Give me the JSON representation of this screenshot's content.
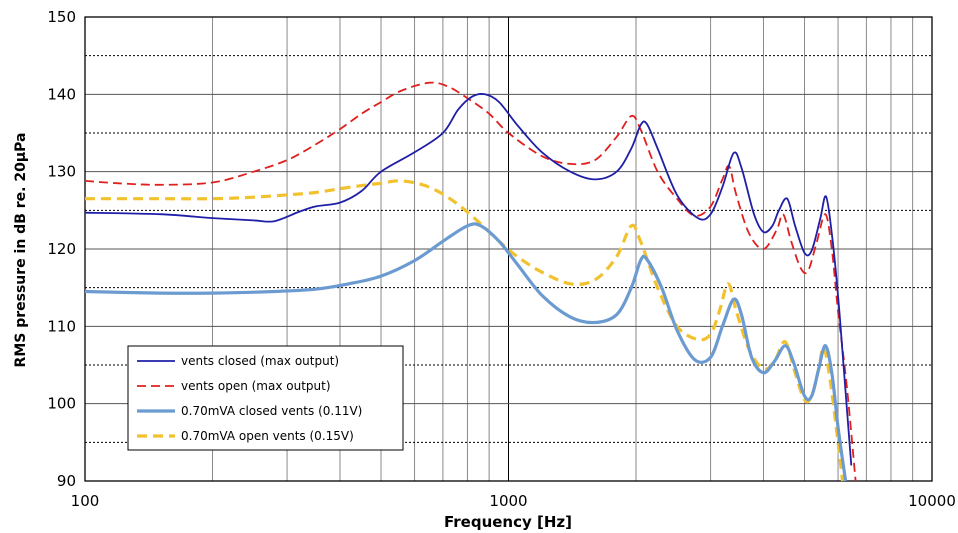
{
  "chart_data": {
    "type": "line",
    "xlabel": "Frequency [Hz]",
    "ylabel": "RMS pressure in dB re. 20µPa",
    "x_scale": "log",
    "xlim": [
      100,
      10000
    ],
    "ylim": [
      90,
      150
    ],
    "x_ticks": [
      100,
      1000,
      10000
    ],
    "x_tick_labels": [
      "100",
      "1000",
      "10000"
    ],
    "y_ticks": [
      90,
      100,
      110,
      120,
      130,
      140,
      150
    ],
    "y_tick_labels": [
      "90",
      "100",
      "110",
      "120",
      "130",
      "140",
      "150"
    ],
    "grid": true,
    "legend_position": "bottom-left",
    "series": [
      {
        "name": "vents closed (max output)",
        "color": "#1f1fa8",
        "style": "solid",
        "width": "thin",
        "points": [
          [
            100,
            124.7
          ],
          [
            150,
            124.5
          ],
          [
            200,
            124
          ],
          [
            250,
            123.7
          ],
          [
            280,
            123.6
          ],
          [
            320,
            124.8
          ],
          [
            350,
            125.5
          ],
          [
            400,
            126
          ],
          [
            450,
            127.5
          ],
          [
            500,
            130
          ],
          [
            600,
            132.5
          ],
          [
            700,
            135
          ],
          [
            760,
            138
          ],
          [
            820,
            139.7
          ],
          [
            880,
            140
          ],
          [
            950,
            139
          ],
          [
            1050,
            136
          ],
          [
            1200,
            132.5
          ],
          [
            1400,
            130
          ],
          [
            1600,
            129
          ],
          [
            1800,
            130
          ],
          [
            1950,
            133
          ],
          [
            2050,
            136
          ],
          [
            2120,
            136.2
          ],
          [
            2250,
            133
          ],
          [
            2500,
            127
          ],
          [
            2800,
            124
          ],
          [
            3000,
            124.5
          ],
          [
            3200,
            128
          ],
          [
            3400,
            132.4
          ],
          [
            3550,
            130.5
          ],
          [
            3800,
            124.5
          ],
          [
            4000,
            122.2
          ],
          [
            4200,
            123
          ],
          [
            4350,
            125
          ],
          [
            4550,
            126.5
          ],
          [
            4750,
            123
          ],
          [
            5000,
            119.5
          ],
          [
            5200,
            119.8
          ],
          [
            5450,
            124
          ],
          [
            5620,
            126.8
          ],
          [
            5800,
            122
          ],
          [
            6000,
            114
          ],
          [
            6200,
            104
          ],
          [
            6450,
            92
          ]
        ]
      },
      {
        "name": "vents open (max output)",
        "color": "#e0201e",
        "style": "dashed",
        "width": "thin",
        "points": [
          [
            100,
            128.8
          ],
          [
            120,
            128.5
          ],
          [
            150,
            128.3
          ],
          [
            200,
            128.6
          ],
          [
            250,
            130
          ],
          [
            300,
            131.5
          ],
          [
            350,
            133.5
          ],
          [
            400,
            135.5
          ],
          [
            450,
            137.5
          ],
          [
            500,
            139
          ],
          [
            560,
            140.5
          ],
          [
            650,
            141.5
          ],
          [
            720,
            141
          ],
          [
            800,
            139.5
          ],
          [
            900,
            137.5
          ],
          [
            1000,
            135
          ],
          [
            1200,
            132
          ],
          [
            1400,
            131
          ],
          [
            1600,
            131.5
          ],
          [
            1800,
            134.5
          ],
          [
            1950,
            137.2
          ],
          [
            2050,
            135.5
          ],
          [
            2250,
            130
          ],
          [
            2500,
            126.5
          ],
          [
            2750,
            124.3
          ],
          [
            3000,
            125.5
          ],
          [
            3200,
            129
          ],
          [
            3320,
            130.7
          ],
          [
            3450,
            127
          ],
          [
            3700,
            122
          ],
          [
            4000,
            120
          ],
          [
            4300,
            122.5
          ],
          [
            4450,
            124.5
          ],
          [
            4650,
            121
          ],
          [
            4900,
            117.5
          ],
          [
            5100,
            117.2
          ],
          [
            5350,
            121
          ],
          [
            5600,
            124.5
          ],
          [
            5800,
            120
          ],
          [
            6000,
            112
          ],
          [
            6300,
            102
          ],
          [
            6600,
            90
          ]
        ]
      },
      {
        "name": "0.70mVA closed vents (0.11V)",
        "color": "#6b9bd1",
        "style": "solid",
        "width": "thick",
        "points": [
          [
            100,
            114.5
          ],
          [
            150,
            114.3
          ],
          [
            200,
            114.3
          ],
          [
            280,
            114.5
          ],
          [
            350,
            114.8
          ],
          [
            420,
            115.5
          ],
          [
            500,
            116.5
          ],
          [
            600,
            118.5
          ],
          [
            700,
            121
          ],
          [
            800,
            123
          ],
          [
            860,
            123
          ],
          [
            950,
            121
          ],
          [
            1050,
            118
          ],
          [
            1200,
            114
          ],
          [
            1400,
            111.2
          ],
          [
            1600,
            110.5
          ],
          [
            1800,
            111.5
          ],
          [
            1950,
            115
          ],
          [
            2050,
            118.5
          ],
          [
            2120,
            118.7
          ],
          [
            2300,
            115
          ],
          [
            2500,
            109.5
          ],
          [
            2750,
            105.7
          ],
          [
            3000,
            106
          ],
          [
            3200,
            110
          ],
          [
            3400,
            113.5
          ],
          [
            3550,
            111.5
          ],
          [
            3750,
            106
          ],
          [
            4000,
            104
          ],
          [
            4250,
            105.5
          ],
          [
            4500,
            107.5
          ],
          [
            4700,
            105.5
          ],
          [
            5000,
            101
          ],
          [
            5200,
            101
          ],
          [
            5400,
            104.5
          ],
          [
            5600,
            107.5
          ],
          [
            5800,
            104
          ],
          [
            6000,
            97
          ],
          [
            6250,
            90
          ]
        ]
      },
      {
        "name": "0.70mVA open vents (0.15V)",
        "color": "#f2c12e",
        "style": "dashed",
        "width": "thick",
        "points": [
          [
            100,
            126.5
          ],
          [
            150,
            126.5
          ],
          [
            200,
            126.5
          ],
          [
            250,
            126.7
          ],
          [
            300,
            127
          ],
          [
            350,
            127.3
          ],
          [
            400,
            127.8
          ],
          [
            450,
            128.2
          ],
          [
            500,
            128.5
          ],
          [
            560,
            128.8
          ],
          [
            650,
            128
          ],
          [
            750,
            126
          ],
          [
            850,
            123.5
          ],
          [
            950,
            121
          ],
          [
            1050,
            119
          ],
          [
            1200,
            117
          ],
          [
            1400,
            115.5
          ],
          [
            1600,
            116
          ],
          [
            1800,
            119
          ],
          [
            1950,
            123
          ],
          [
            2050,
            121
          ],
          [
            2250,
            115
          ],
          [
            2500,
            110
          ],
          [
            2800,
            108.3
          ],
          [
            3000,
            109
          ],
          [
            3150,
            112
          ],
          [
            3300,
            115.5
          ],
          [
            3450,
            112
          ],
          [
            3700,
            107
          ],
          [
            4000,
            104.5
          ],
          [
            4250,
            105.5
          ],
          [
            4500,
            108
          ],
          [
            4750,
            104
          ],
          [
            5000,
            100.5
          ],
          [
            5200,
            101
          ],
          [
            5400,
            104.5
          ],
          [
            5550,
            107.3
          ],
          [
            5750,
            103
          ],
          [
            6000,
            95
          ],
          [
            6150,
            90
          ]
        ]
      }
    ]
  }
}
